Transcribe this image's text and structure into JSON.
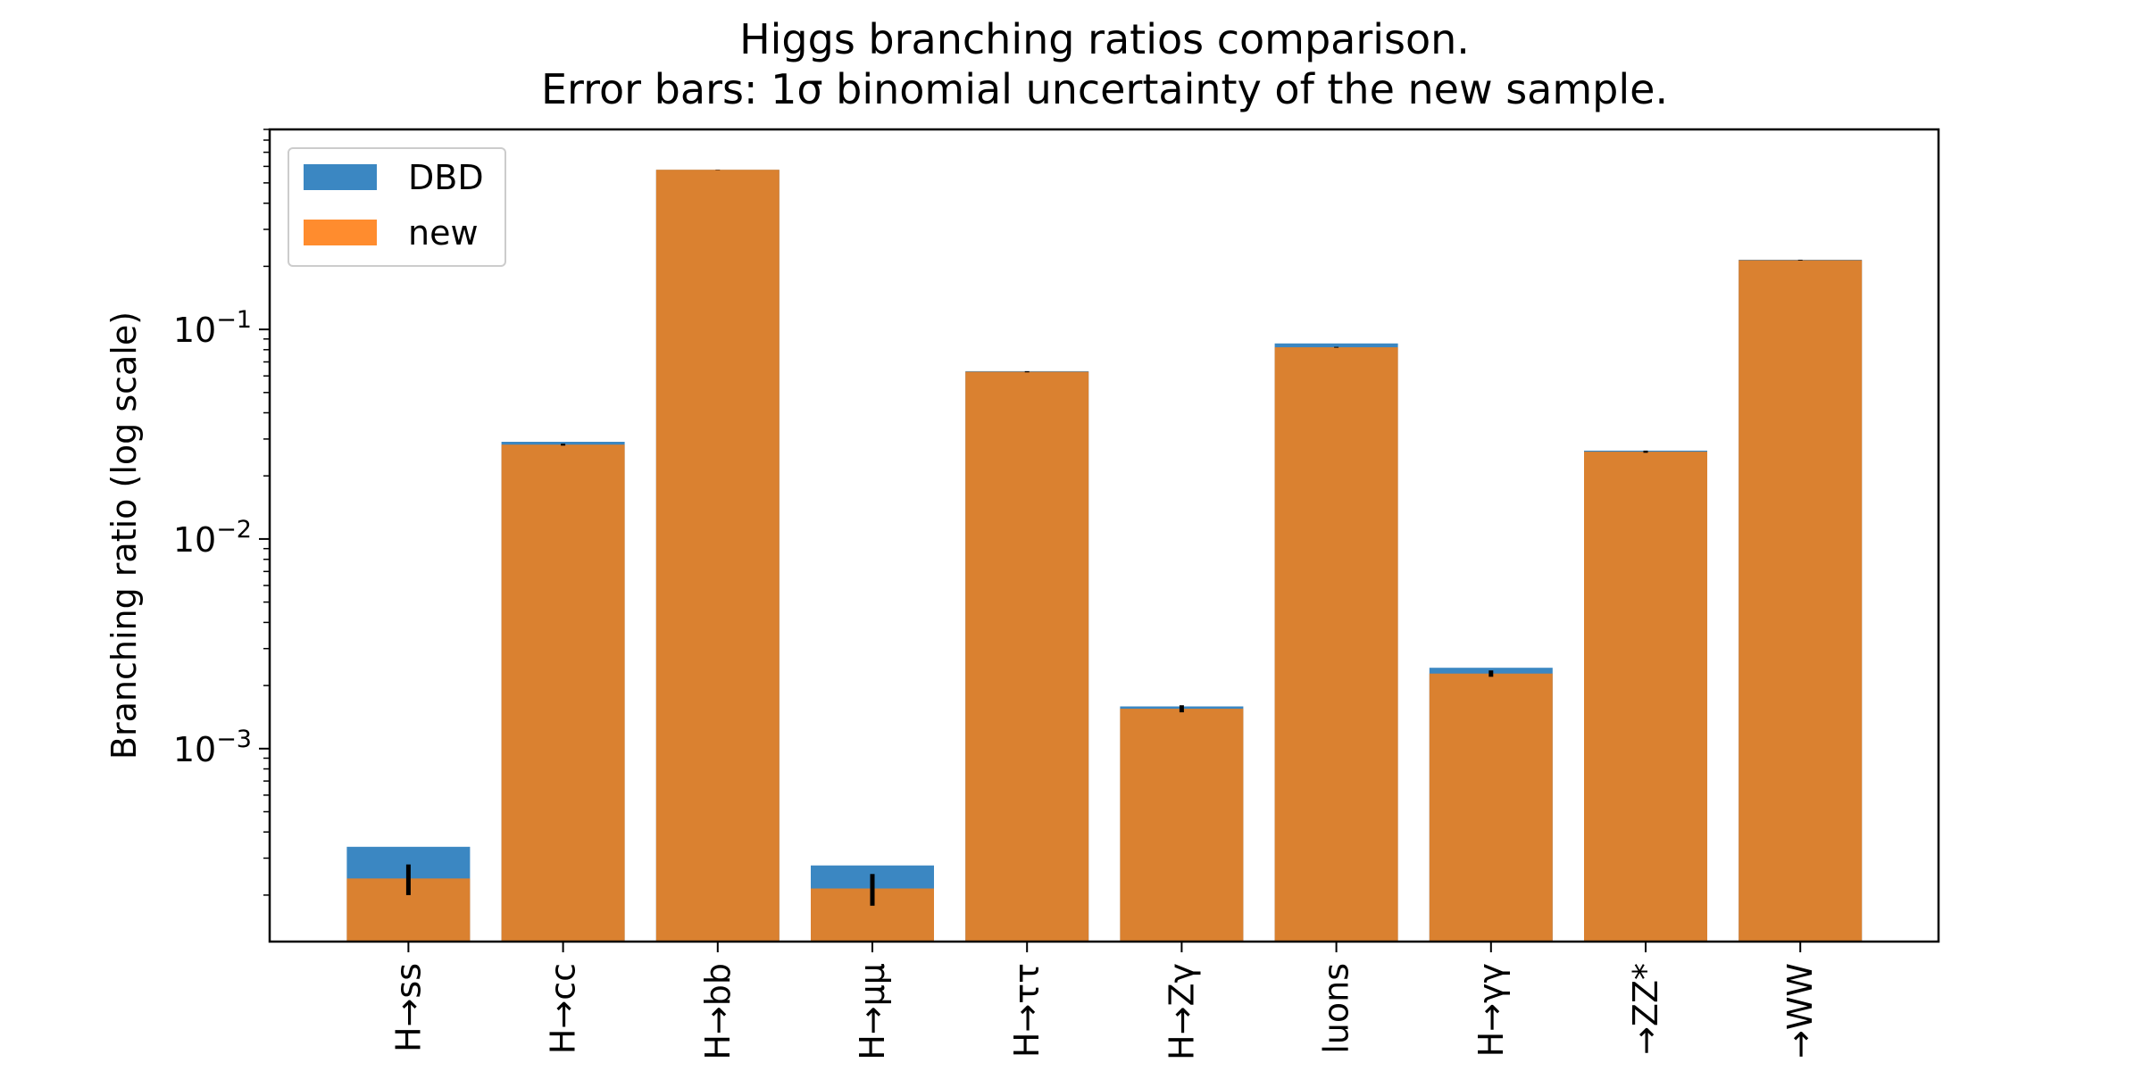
{
  "chart_data": {
    "type": "bar",
    "title": "Higgs branching ratios comparison.",
    "subtitle": "Error bars: 1σ binomial uncertainty of the new sample.",
    "xlabel": "",
    "ylabel": "Branching ratio (log scale)",
    "yscale": "log",
    "ylim": [
      0.00012,
      0.9
    ],
    "yticks": [
      {
        "value": 0.001,
        "base": "10",
        "exp": "−3"
      },
      {
        "value": 0.01,
        "base": "10",
        "exp": "−2"
      },
      {
        "value": 0.1,
        "base": "10",
        "exp": "−1"
      }
    ],
    "categories": [
      "H→ss",
      "H→cc",
      "H→bb",
      "H→μμ",
      "H→ττ",
      "H→Zγ",
      "luons",
      "H→γγ",
      "→ZZ*",
      "→WW"
    ],
    "series": [
      {
        "name": "DBD",
        "color": "#3b87c2",
        "values": [
          0.00034,
          0.0291,
          0.577,
          0.000277,
          0.0632,
          0.00159,
          0.0857,
          0.00243,
          0.0264,
          0.215
        ]
      },
      {
        "name": "new",
        "color": "#e88024",
        "values": [
          0.00024,
          0.0282,
          0.578,
          0.000215,
          0.0628,
          0.00155,
          0.0822,
          0.00228,
          0.0261,
          0.214
        ],
        "error": [
          4e-05,
          0.0003,
          0.0012,
          3.7e-05,
          0.0004,
          6e-05,
          0.0004,
          8e-05,
          0.0003,
          0.0008
        ]
      }
    ],
    "legend": {
      "position": "top-left",
      "entries": [
        {
          "label": "DBD",
          "color": "#3b87c2"
        },
        {
          "label": "new",
          "color": "#ff8c2e"
        }
      ]
    },
    "grid": false
  }
}
